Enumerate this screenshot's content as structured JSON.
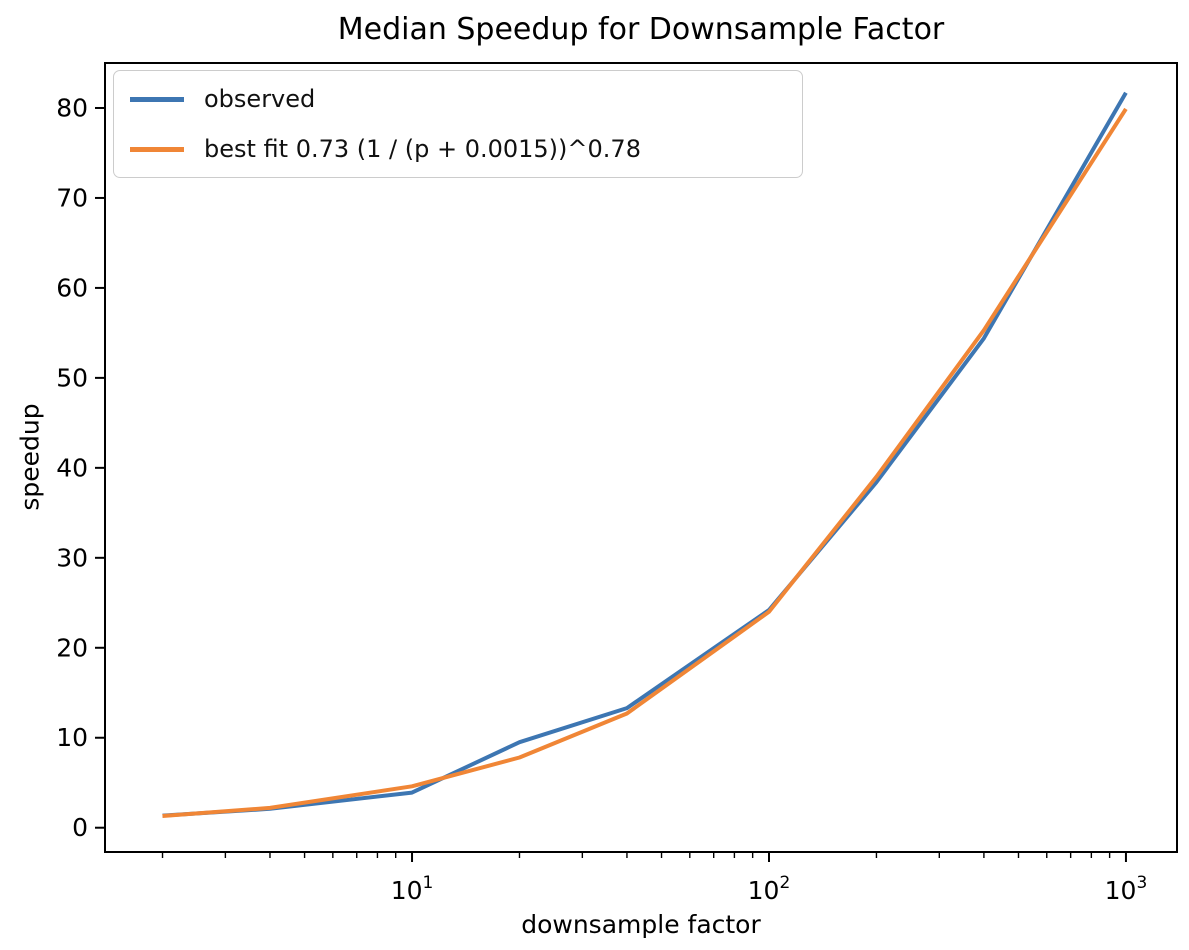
{
  "figure": {
    "title": "Median Speedup for Downsample Factor",
    "xlabel": "downsample factor",
    "ylabel": "speedup"
  },
  "chart_data": {
    "type": "line",
    "title": "Median Speedup for Downsample Factor",
    "xlabel": "downsample factor",
    "ylabel": "speedup",
    "x_scale": "log10",
    "grid": false,
    "legend_position": "upper left",
    "x": [
      2,
      4,
      10,
      20,
      40,
      100,
      200,
      400,
      1000
    ],
    "series": [
      {
        "name": "observed",
        "color": "#3d76b2",
        "values": [
          1.35,
          2.1,
          3.9,
          9.5,
          13.3,
          24.2,
          38.4,
          54.4,
          81.7
        ]
      },
      {
        "name": "best fit 0.73 (1 / (p + 0.0015))^0.78",
        "color": "#f08636",
        "values": [
          1.3,
          2.2,
          4.6,
          7.8,
          12.7,
          24.0,
          39.0,
          55.3,
          79.9
        ]
      }
    ],
    "xlim": [
      1.38,
      1390
    ],
    "ylim": [
      -2.7,
      85
    ],
    "y_ticks": [
      0,
      10,
      20,
      30,
      40,
      50,
      60,
      70,
      80
    ],
    "x_major_ticks": [
      {
        "value": 10,
        "base": "10",
        "exp": "1"
      },
      {
        "value": 100,
        "base": "10",
        "exp": "2"
      },
      {
        "value": 1000,
        "base": "10",
        "exp": "3"
      }
    ],
    "line_width": 4
  },
  "colors": {
    "axes": "#000000",
    "tick_text": "#000000",
    "legend_border": "#cccccc"
  }
}
